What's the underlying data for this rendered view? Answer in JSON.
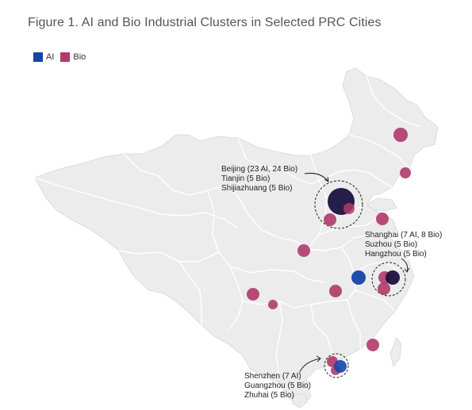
{
  "title": "Figure 1. AI and Bio Industrial Clusters in Selected PRC Cities",
  "legend": [
    {
      "label": "AI",
      "color": "#1545a8"
    },
    {
      "label": "Bio",
      "color": "#b03a6a"
    }
  ],
  "colors": {
    "ai": "#1545a8",
    "bio": "#b03a6a",
    "overlap": "#1c1240",
    "land": "#ececec",
    "border": "#ffffff"
  },
  "annotations": {
    "beijing": [
      "Beijing (23 AI, 24 Bio)",
      "Tianjin (5 Bio)",
      "Shijiazhuang (5 Bio)"
    ],
    "shanghai": [
      "Shanghai (7 AI, 8 Bio)",
      "Suzhou (5 Bio)",
      "Hangzhou (5 Bio)"
    ],
    "shenzhen": [
      "Shenzhen (7 AI)",
      "Guangzhou (5 Bio)",
      "Zhuhai (5 Bio)"
    ]
  }
}
